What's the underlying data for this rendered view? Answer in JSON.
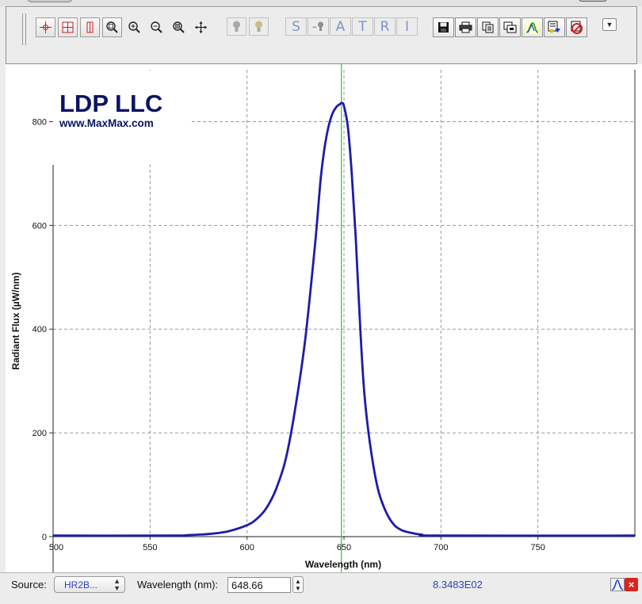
{
  "toolbar": {
    "letter_buttons": [
      "S",
      "-",
      "A",
      "T",
      "R",
      "I"
    ]
  },
  "logo": {
    "company": "LDP LLC",
    "website": "www.MaxMax.com"
  },
  "colors": {
    "series": "#1c1ca8",
    "marker": "#3cc83c",
    "grid": "#9a9a9a",
    "readout": "#2b45b8"
  },
  "chart_data": {
    "type": "line",
    "title": "",
    "xlabel": "Wavelength (nm)",
    "ylabel": "Radiant Flux (µW/nm)",
    "xlim": [
      500,
      800
    ],
    "ylim": [
      0,
      900
    ],
    "xticks": [
      500,
      550,
      600,
      650,
      700,
      750
    ],
    "yticks": [
      0,
      200,
      400,
      600,
      800
    ],
    "grid": true,
    "marker_wavelength": 648.66,
    "series": [
      {
        "x": [
          500,
          560,
          570,
          580,
          590,
          600,
          605,
          610,
          615,
          620,
          625,
          630,
          635,
          638,
          640,
          642,
          644,
          646,
          648,
          649,
          650,
          652,
          654,
          656,
          658,
          660,
          662,
          665,
          668,
          672,
          676,
          680,
          685,
          690,
          700,
          800
        ],
        "values": [
          2,
          2,
          3,
          5,
          10,
          22,
          34,
          55,
          92,
          150,
          250,
          380,
          560,
          690,
          750,
          790,
          815,
          828,
          834,
          836,
          830,
          790,
          700,
          580,
          430,
          300,
          220,
          140,
          85,
          45,
          22,
          12,
          7,
          4,
          2,
          2
        ]
      }
    ]
  },
  "status": {
    "source_label": "Source:",
    "source_value": "HR2B...",
    "wavelength_label": "Wavelength (nm):",
    "wavelength_value": "648.66",
    "readout": "8.3483E02"
  }
}
